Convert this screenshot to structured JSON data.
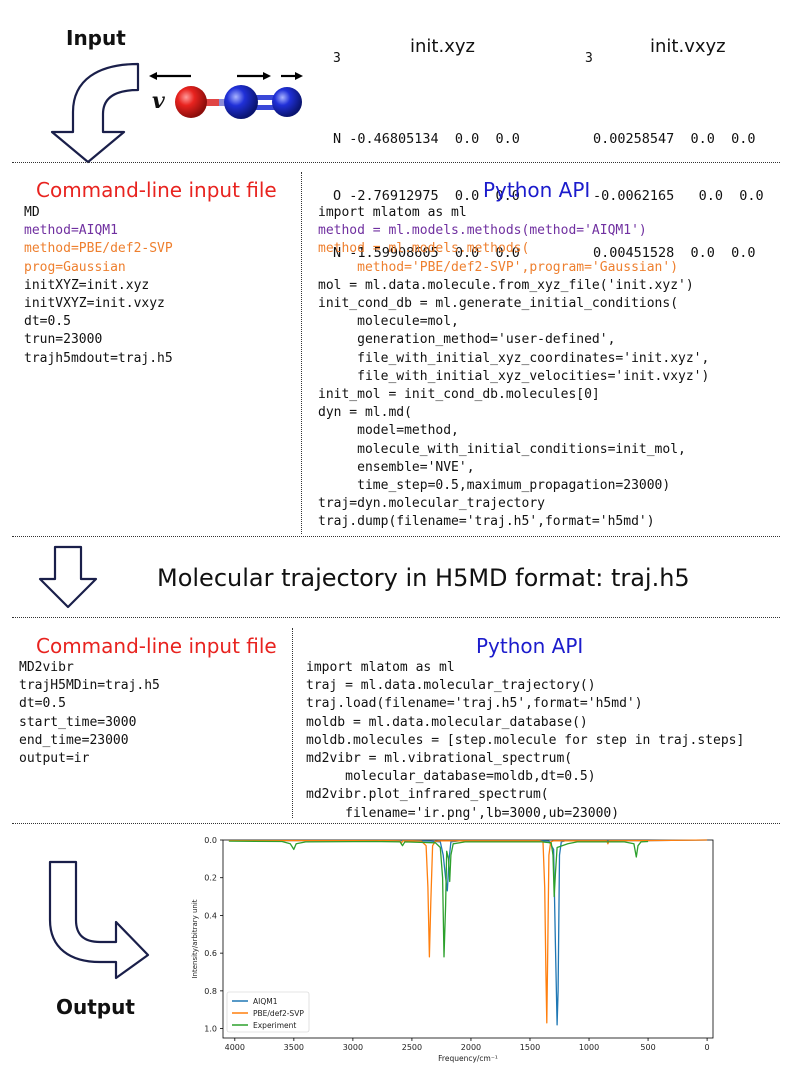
{
  "input": {
    "label": "Input",
    "velocity_symbol": "v",
    "xyz_title": "init.xyz",
    "vxyz_title": "init.vxyz",
    "atom_count_xyz": "3",
    "atom_count_vxyz": "3",
    "xyz_rows": [
      "N -0.46805134  0.0  0.0",
      "O -2.76912975  0.0  0.0",
      "N -1.59908605  0.0  0.0"
    ],
    "vxyz_rows": [
      "0.00258547  0.0  0.0",
      "-0.0062165   0.0  0.0",
      "0.00451528  0.0  0.0"
    ],
    "colors": {
      "oxygen": "#e8231f",
      "nitrogen": "#2030d8"
    }
  },
  "section1": {
    "cli_title": "Command-line input file",
    "api_title": "Python API",
    "cli_lines": [
      {
        "text": "MD",
        "style": "plain"
      },
      {
        "text": "method=AIQM1",
        "style": "purple"
      },
      {
        "text": "method=PBE/def2-SVP",
        "style": "orange"
      },
      {
        "text": "prog=Gaussian",
        "style": "orange"
      },
      {
        "text": "initXYZ=init.xyz",
        "style": "plain"
      },
      {
        "text": "initVXYZ=init.vxyz",
        "style": "plain"
      },
      {
        "text": "dt=0.5",
        "style": "plain"
      },
      {
        "text": "trun=23000",
        "style": "plain"
      },
      {
        "text": "trajh5mdout=traj.h5",
        "style": "plain"
      }
    ],
    "api_lines": [
      {
        "text": "import mlatom as ml",
        "style": "plain"
      },
      {
        "text": "method = ml.models.methods(method='AIQM1')",
        "style": "purple"
      },
      {
        "text": "method = ml.models.methods(",
        "style": "orange"
      },
      {
        "text": "     method='PBE/def2-SVP',program='Gaussian')",
        "style": "orange"
      },
      {
        "text": "mol = ml.data.molecule.from_xyz_file('init.xyz')",
        "style": "plain"
      },
      {
        "text": "init_cond_db = ml.generate_initial_conditions(",
        "style": "plain"
      },
      {
        "text": "     molecule=mol,",
        "style": "plain"
      },
      {
        "text": "     generation_method='user-defined',",
        "style": "plain"
      },
      {
        "text": "     file_with_initial_xyz_coordinates='init.xyz',",
        "style": "plain"
      },
      {
        "text": "     file_with_initial_xyz_velocities='init.vxyz')",
        "style": "plain"
      },
      {
        "text": "init_mol = init_cond_db.molecules[0]",
        "style": "plain"
      },
      {
        "text": "dyn = ml.md(",
        "style": "plain"
      },
      {
        "text": "     model=method,",
        "style": "plain"
      },
      {
        "text": "     molecule_with_initial_conditions=init_mol,",
        "style": "plain"
      },
      {
        "text": "     ensemble='NVE',",
        "style": "plain"
      },
      {
        "text": "     time_step=0.5,maximum_propagation=23000)",
        "style": "plain"
      },
      {
        "text": "traj=dyn.molecular_trajectory",
        "style": "plain"
      },
      {
        "text": "traj.dump(filename='traj.h5',format='h5md')",
        "style": "plain"
      }
    ]
  },
  "trajectory_caption": "Molecular trajectory in H5MD format: traj.h5",
  "section2": {
    "cli_title": "Command-line input file",
    "api_title": "Python API",
    "cli_lines": [
      {
        "text": "MD2vibr",
        "style": "plain"
      },
      {
        "text": "trajH5MDin=traj.h5",
        "style": "plain"
      },
      {
        "text": "dt=0.5",
        "style": "plain"
      },
      {
        "text": "start_time=3000",
        "style": "plain"
      },
      {
        "text": "end_time=23000",
        "style": "plain"
      },
      {
        "text": "output=ir",
        "style": "plain"
      }
    ],
    "api_lines": [
      {
        "text": "import mlatom as ml",
        "style": "plain"
      },
      {
        "text": "traj = ml.data.molecular_trajectory()",
        "style": "plain"
      },
      {
        "text": "traj.load(filename='traj.h5',format='h5md')",
        "style": "plain"
      },
      {
        "text": "moldb = ml.data.molecular_database()",
        "style": "plain"
      },
      {
        "text": "moldb.molecules = [step.molecule for step in traj.steps]",
        "style": "plain"
      },
      {
        "text": "md2vibr = ml.vibrational_spectrum(",
        "style": "plain"
      },
      {
        "text": "     molecular_database=moldb,dt=0.5)",
        "style": "plain"
      },
      {
        "text": "md2vibr.plot_infrared_spectrum(",
        "style": "plain"
      },
      {
        "text": "     filename='ir.png',lb=3000,ub=23000)",
        "style": "plain"
      }
    ]
  },
  "output": {
    "label": "Output",
    "chart_data": {
      "type": "line",
      "title": "",
      "xlabel": "Frequency/cm⁻¹",
      "ylabel": "Intensity/arbitrary unit",
      "xlim": [
        4100,
        -50
      ],
      "ylim": [
        0.0,
        1.05
      ],
      "y_inverted": true,
      "x_ticks": [
        4000,
        3500,
        3000,
        2500,
        2000,
        1500,
        1000,
        500,
        0
      ],
      "y_ticks": [
        "0.0",
        "0.2",
        "0.4",
        "0.6",
        "0.8",
        "1.0"
      ],
      "legend_position": "bottom-left",
      "grid": false,
      "series": [
        {
          "name": "AIQM1",
          "color": "#1f77b4",
          "points": [
            [
              4050,
              0.003
            ],
            [
              2600,
              0.003
            ],
            [
              2440,
              0.004
            ],
            [
              2340,
              0.006
            ],
            [
              2260,
              0.01
            ],
            [
              2235,
              0.08
            ],
            [
              2215,
              0.2
            ],
            [
              2200,
              0.27
            ],
            [
              2185,
              0.1
            ],
            [
              2170,
              0.01
            ],
            [
              2100,
              0.004
            ],
            [
              1400,
              0.004
            ],
            [
              1340,
              0.006
            ],
            [
              1300,
              0.05
            ],
            [
              1285,
              0.55
            ],
            [
              1270,
              0.98
            ],
            [
              1262,
              0.8
            ],
            [
              1250,
              0.08
            ],
            [
              1235,
              0.01
            ],
            [
              1200,
              0.004
            ],
            [
              820,
              0.004
            ],
            [
              700,
              0.003
            ],
            [
              500,
              0.003
            ],
            [
              0,
              0.0
            ]
          ]
        },
        {
          "name": "PBE/def2-SVP",
          "color": "#ff7f0e",
          "points": [
            [
              4050,
              0.003
            ],
            [
              2700,
              0.003
            ],
            [
              2600,
              0.005
            ],
            [
              2590,
              0.02
            ],
            [
              2580,
              0.005
            ],
            [
              2500,
              0.004
            ],
            [
              2420,
              0.006
            ],
            [
              2380,
              0.03
            ],
            [
              2365,
              0.25
            ],
            [
              2352,
              0.62
            ],
            [
              2340,
              0.33
            ],
            [
              2325,
              0.03
            ],
            [
              2300,
              0.006
            ],
            [
              2250,
              0.004
            ],
            [
              1420,
              0.004
            ],
            [
              1390,
              0.01
            ],
            [
              1375,
              0.25
            ],
            [
              1365,
              0.7
            ],
            [
              1358,
              0.97
            ],
            [
              1350,
              0.6
            ],
            [
              1340,
              0.08
            ],
            [
              1325,
              0.01
            ],
            [
              1300,
              0.004
            ],
            [
              850,
              0.004
            ],
            [
              840,
              0.02
            ],
            [
              830,
              0.004
            ],
            [
              500,
              0.003
            ],
            [
              0,
              0.0
            ]
          ]
        },
        {
          "name": "Experiment",
          "color": "#2ca02c",
          "points": [
            [
              4050,
              0.006
            ],
            [
              3600,
              0.008
            ],
            [
              3530,
              0.02
            ],
            [
              3500,
              0.05
            ],
            [
              3480,
              0.02
            ],
            [
              3400,
              0.01
            ],
            [
              2800,
              0.008
            ],
            [
              2600,
              0.01
            ],
            [
              2580,
              0.03
            ],
            [
              2560,
              0.01
            ],
            [
              2300,
              0.015
            ],
            [
              2260,
              0.04
            ],
            [
              2240,
              0.2
            ],
            [
              2228,
              0.62
            ],
            [
              2215,
              0.35
            ],
            [
              2205,
              0.06
            ],
            [
              2190,
              0.1
            ],
            [
              2180,
              0.22
            ],
            [
              2170,
              0.08
            ],
            [
              2150,
              0.02
            ],
            [
              2050,
              0.01
            ],
            [
              1400,
              0.01
            ],
            [
              1320,
              0.015
            ],
            [
              1305,
              0.08
            ],
            [
              1295,
              0.3
            ],
            [
              1285,
              0.18
            ],
            [
              1270,
              0.04
            ],
            [
              1180,
              0.02
            ],
            [
              1100,
              0.01
            ],
            [
              700,
              0.01
            ],
            [
              620,
              0.02
            ],
            [
              600,
              0.09
            ],
            [
              585,
              0.03
            ],
            [
              560,
              0.01
            ],
            [
              500,
              0.008
            ]
          ]
        }
      ]
    }
  }
}
